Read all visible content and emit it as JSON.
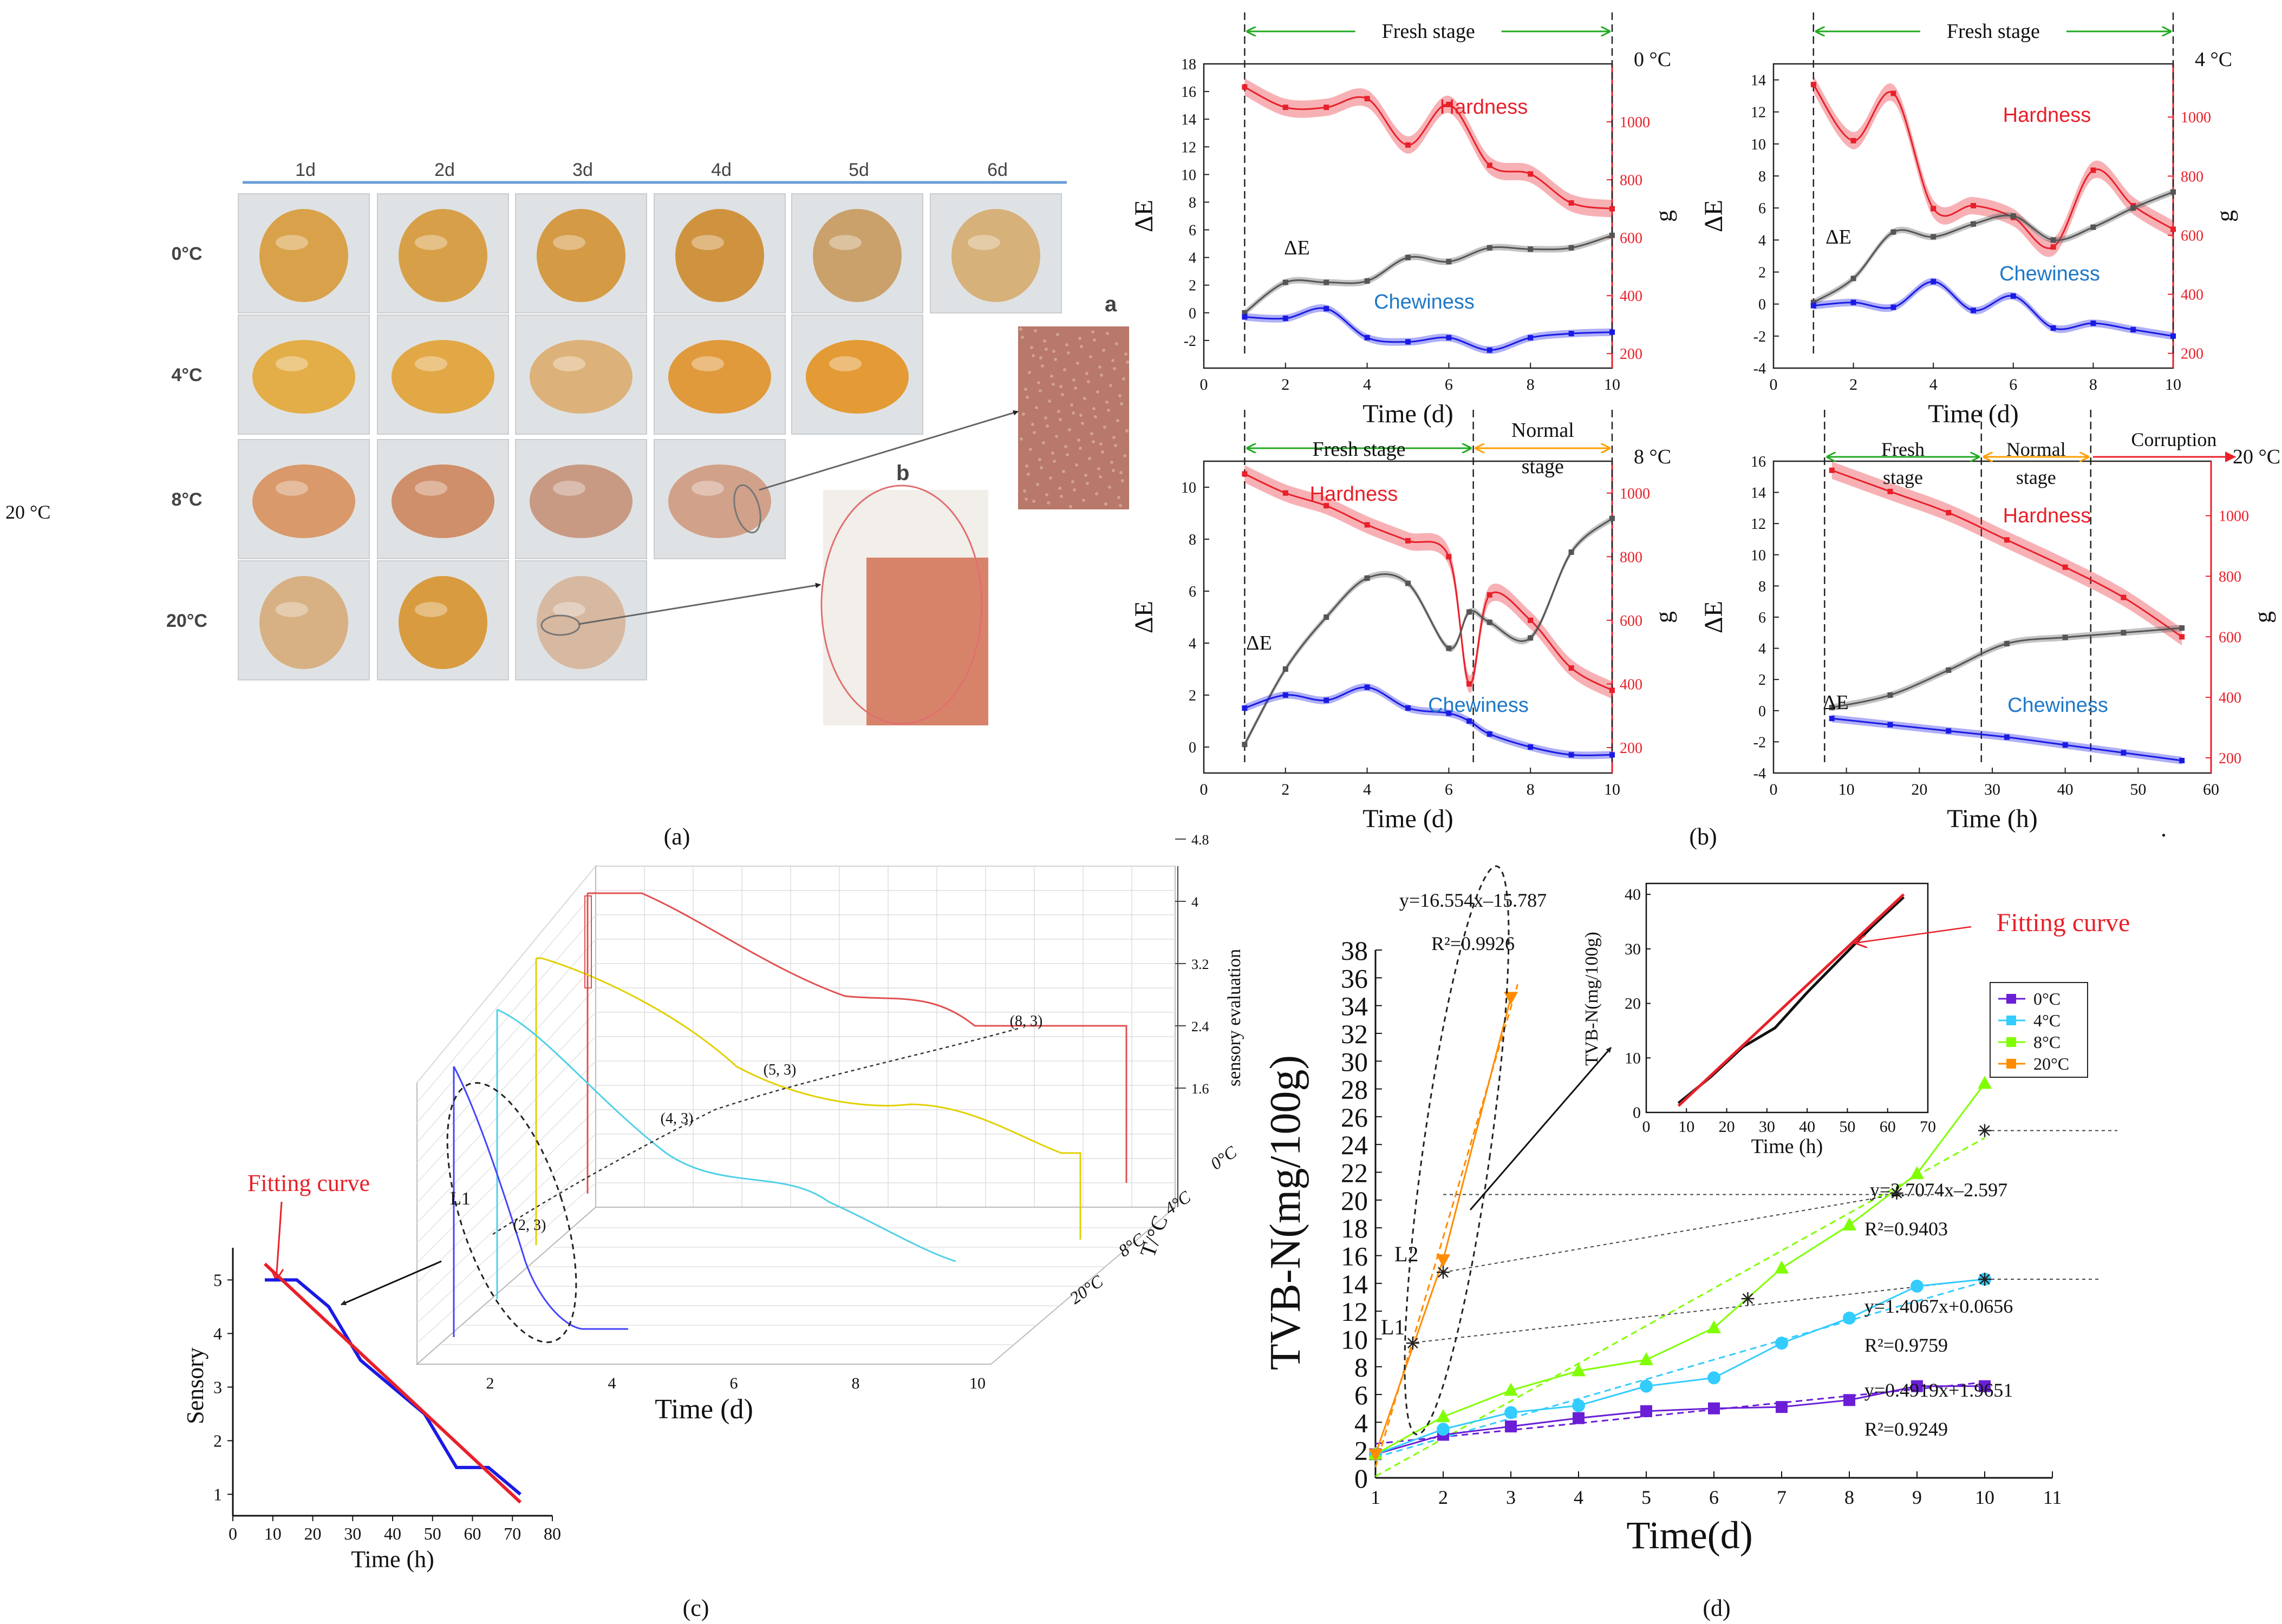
{
  "labels": {
    "a": "(a)",
    "b": "(b)",
    "c": "(c)",
    "d": "(d)",
    "stray_20c": "20 °C"
  },
  "colors": {
    "red": "#e8202a",
    "blue": "#1a1ae6",
    "grey": "#555555",
    "green": "#22aa22",
    "orange": "#ff8c00",
    "cyan": "#33ccff",
    "lime": "#7fff00",
    "purple": "#6a1fd6"
  },
  "panel_a": {
    "columns": [
      "1d",
      "2d",
      "3d",
      "4d",
      "5d",
      "6d"
    ],
    "rows": [
      "0°C",
      "4°C",
      "8°C",
      "20°C"
    ],
    "counts": [
      6,
      5,
      4,
      3
    ],
    "inset_a": "a",
    "inset_b": "b"
  },
  "panel_b": {
    "ylabel_left": "ΔE",
    "ylabel_right": "g",
    "series_hardness": "Hardness",
    "series_de": "ΔE",
    "series_chewiness": "Chewiness",
    "stage_fresh": "Fresh stage",
    "stage_fresh_split": [
      "Fresh",
      "stage"
    ],
    "stage_normal": [
      "Normal",
      "stage"
    ],
    "stage_corruption": "Corruption"
  },
  "chart_data": [
    {
      "type": "line",
      "temp": "0 °C",
      "xlabel": "Time (d)",
      "xlim": [
        0,
        10
      ],
      "xticks": [
        0,
        2,
        4,
        6,
        8,
        10
      ],
      "ylim_left": [
        -4,
        18
      ],
      "yticks_left": [
        -2,
        0,
        2,
        4,
        6,
        8,
        10,
        12,
        14,
        16,
        18
      ],
      "ylim_right": [
        150,
        1200
      ],
      "yticks_right": [
        200,
        400,
        600,
        800,
        1000
      ],
      "stage_boundaries": [
        1,
        10
      ],
      "hardness": {
        "x": [
          1,
          2,
          3,
          4,
          5,
          6,
          7,
          8,
          9,
          10
        ],
        "y": [
          1120,
          1050,
          1050,
          1080,
          920,
          1060,
          850,
          820,
          720,
          700
        ]
      },
      "delta_e": {
        "x": [
          1,
          2,
          3,
          4,
          5,
          6,
          7,
          8,
          9,
          10
        ],
        "y": [
          0,
          2.2,
          2.2,
          2.3,
          4.0,
          3.7,
          4.7,
          4.6,
          4.7,
          5.6
        ]
      },
      "chewiness": {
        "x": [
          1,
          2,
          3,
          4,
          5,
          6,
          7,
          8,
          9,
          10
        ],
        "y": [
          -0.3,
          -0.4,
          0.3,
          -1.8,
          -2.1,
          -1.8,
          -2.7,
          -1.8,
          -1.5,
          -1.4
        ]
      }
    },
    {
      "type": "line",
      "temp": "4 °C",
      "xlabel": "Time (d)",
      "xlim": [
        0,
        10
      ],
      "xticks": [
        0,
        2,
        4,
        6,
        8,
        10
      ],
      "ylim_left": [
        -4,
        15
      ],
      "yticks_left": [
        -4,
        -2,
        0,
        2,
        4,
        6,
        8,
        10,
        12,
        14
      ],
      "ylim_right": [
        150,
        1180
      ],
      "yticks_right": [
        200,
        400,
        600,
        800,
        1000
      ],
      "stage_boundaries": [
        1,
        10
      ],
      "hardness": {
        "x": [
          1,
          2,
          3,
          4,
          5,
          6,
          7,
          8,
          9,
          10
        ],
        "y": [
          1110,
          920,
          1080,
          690,
          700,
          660,
          560,
          820,
          700,
          620
        ]
      },
      "delta_e": {
        "x": [
          1,
          2,
          3,
          4,
          5,
          6,
          7,
          8,
          9,
          10
        ],
        "y": [
          0.1,
          1.6,
          4.5,
          4.2,
          5.0,
          5.5,
          4.0,
          4.8,
          6.0,
          7.0
        ]
      },
      "chewiness": {
        "x": [
          1,
          2,
          3,
          4,
          5,
          6,
          7,
          8,
          9,
          10
        ],
        "y": [
          -0.1,
          0.1,
          -0.2,
          1.4,
          -0.4,
          0.5,
          -1.5,
          -1.2,
          -1.6,
          -2.0
        ]
      }
    },
    {
      "type": "line",
      "temp": "8 °C",
      "xlabel": "Time (d)",
      "xlim": [
        0,
        10
      ],
      "xticks": [
        0,
        2,
        4,
        6,
        8,
        10
      ],
      "ylim_left": [
        -1,
        11
      ],
      "yticks_left": [
        0,
        2,
        4,
        6,
        8,
        10
      ],
      "ylim_right": [
        120,
        1100
      ],
      "yticks_right": [
        200,
        400,
        600,
        800,
        1000
      ],
      "stage_boundaries": [
        1,
        6.6,
        10
      ],
      "hardness": {
        "x": [
          1,
          2,
          3,
          4,
          5,
          6,
          6.5,
          7,
          8,
          9,
          10
        ],
        "y": [
          1060,
          1000,
          960,
          900,
          850,
          800,
          400,
          680,
          600,
          450,
          380
        ]
      },
      "delta_e": {
        "x": [
          1,
          2,
          3,
          4,
          5,
          6,
          6.5,
          7,
          8,
          9,
          10
        ],
        "y": [
          0.1,
          3.0,
          5.0,
          6.5,
          6.3,
          3.8,
          5.2,
          4.8,
          4.2,
          7.5,
          8.8
        ]
      },
      "chewiness": {
        "x": [
          1,
          2,
          3,
          4,
          5,
          6,
          6.5,
          7,
          8,
          9,
          10
        ],
        "y": [
          1.5,
          2.0,
          1.8,
          2.3,
          1.5,
          1.3,
          1.0,
          0.5,
          0.0,
          -0.3,
          -0.3
        ]
      }
    },
    {
      "type": "line",
      "temp": "20 °C",
      "xlabel": "Time (h)",
      "xlim": [
        0,
        60
      ],
      "xticks": [
        0,
        10,
        20,
        30,
        40,
        50,
        60
      ],
      "ylim_left": [
        -4,
        16
      ],
      "yticks_left": [
        -4,
        -2,
        0,
        2,
        4,
        6,
        8,
        10,
        12,
        14,
        16
      ],
      "ylim_right": [
        150,
        1180
      ],
      "yticks_right": [
        200,
        400,
        600,
        800,
        1000
      ],
      "stage_boundaries": [
        7,
        28.5,
        43.5
      ],
      "hardness": {
        "x": [
          8,
          16,
          24,
          32,
          40,
          48,
          56
        ],
        "y": [
          1150,
          1080,
          1010,
          920,
          830,
          730,
          600
        ]
      },
      "delta_e": {
        "x": [
          8,
          16,
          24,
          32,
          40,
          48,
          56
        ],
        "y": [
          0.2,
          1.0,
          2.6,
          4.3,
          4.7,
          5.0,
          5.3
        ]
      },
      "chewiness": {
        "x": [
          8,
          16,
          24,
          32,
          40,
          48,
          56
        ],
        "y": [
          -0.5,
          -0.9,
          -1.3,
          -1.7,
          -2.2,
          -2.7,
          -3.2
        ]
      }
    },
    {
      "type": "line",
      "name": "panel_c_3d",
      "xlabel": "Time (d)",
      "zlabel": "sensory evaluation",
      "ylabel": "T/°C",
      "xticks": [
        2,
        4,
        6,
        8,
        10
      ],
      "zticks": [
        1.6,
        2.4,
        3.2,
        4.0,
        4.8
      ],
      "depth_ticks": [
        "0°C",
        "4°C",
        "8°C",
        "20°C"
      ],
      "annotations": [
        "(8, 3)",
        "(5, 3)",
        "(4, 3)",
        "(2, 3)",
        "L1"
      ],
      "fitting_label": "Fitting curve"
    },
    {
      "type": "line",
      "name": "panel_c_sensory",
      "xlabel": "Time (h)",
      "ylabel": "Sensory",
      "xlim": [
        0,
        80
      ],
      "xticks": [
        0,
        10,
        20,
        30,
        40,
        50,
        60,
        70,
        80
      ],
      "ylim": [
        0.6,
        5.6
      ],
      "yticks": [
        1,
        2,
        3,
        4,
        5
      ],
      "series": [
        {
          "color": "blue",
          "x": [
            8,
            16,
            24,
            32,
            40,
            48,
            56,
            64,
            72
          ],
          "y": [
            5,
            5,
            4.5,
            3.5,
            3,
            2.5,
            1.5,
            1.5,
            1
          ]
        },
        {
          "color": "red",
          "x": [
            8,
            72
          ],
          "y": [
            5.3,
            0.85
          ]
        }
      ]
    },
    {
      "type": "scatter",
      "name": "panel_d_tvbn",
      "xlabel": "Time(d)",
      "ylabel": "TVB-N(mg/100g)",
      "xlim": [
        1,
        11
      ],
      "xticks": [
        1,
        2,
        3,
        4,
        5,
        6,
        7,
        8,
        9,
        10,
        11
      ],
      "ylim": [
        0,
        38
      ],
      "yticks": [
        0,
        2,
        4,
        6,
        8,
        10,
        12,
        14,
        16,
        18,
        20,
        22,
        24,
        26,
        28,
        30,
        32,
        34,
        36,
        38
      ],
      "legend": [
        "0°C",
        "4°C",
        "8°C",
        "20°C"
      ],
      "series": [
        {
          "name": "0°C",
          "x": [
            1,
            2,
            3,
            4,
            5,
            6,
            7,
            8,
            9,
            10
          ],
          "y": [
            1.7,
            3.1,
            3.7,
            4.3,
            4.8,
            5.0,
            5.1,
            5.6,
            6.6,
            6.6
          ]
        },
        {
          "name": "4°C",
          "x": [
            1,
            2,
            3,
            4,
            5,
            6,
            7,
            8,
            9,
            10
          ],
          "y": [
            1.7,
            3.5,
            4.7,
            5.2,
            6.6,
            7.2,
            9.7,
            11.5,
            13.8,
            14.3
          ]
        },
        {
          "name": "8°C",
          "x": [
            1,
            2,
            3,
            4,
            5,
            6,
            7,
            8,
            9,
            10
          ],
          "y": [
            1.7,
            4.4,
            6.3,
            7.7,
            8.5,
            10.8,
            15.1,
            18.2,
            21.9,
            28.4
          ]
        },
        {
          "name": "20°C",
          "x": [
            1,
            2,
            3
          ],
          "y": [
            1.7,
            15.7,
            34.6
          ]
        }
      ],
      "equations": [
        {
          "eq": "y=16.554x–15.787",
          "r2": "R²=0.9926"
        },
        {
          "eq": "y=2.7074x–2.597",
          "r2": "R²=0.9403"
        },
        {
          "eq": "y=1.4067x+0.0656",
          "r2": "R²=0.9759"
        },
        {
          "eq": "y=0.4919x+1.9651",
          "r2": "R²=0.9249"
        }
      ],
      "point_labels": [
        "L2",
        "L1"
      ],
      "inset": {
        "xlabel": "Time (h)",
        "ylabel": "TVB-N(mg/100g)",
        "xlim": [
          0,
          70
        ],
        "xticks": [
          0,
          10,
          20,
          30,
          40,
          50,
          60,
          70
        ],
        "ylim": [
          0,
          42
        ],
        "yticks": [
          0,
          10,
          20,
          30,
          40
        ],
        "black": {
          "x": [
            8,
            16,
            24,
            32,
            40,
            48,
            56,
            64
          ],
          "y": [
            1.7,
            6.5,
            12,
            15.5,
            22,
            28,
            34,
            39.5
          ]
        },
        "red": {
          "x": [
            8,
            64
          ],
          "y": [
            1.2,
            40
          ]
        }
      },
      "fitting_label": "Fitting curve"
    }
  ]
}
